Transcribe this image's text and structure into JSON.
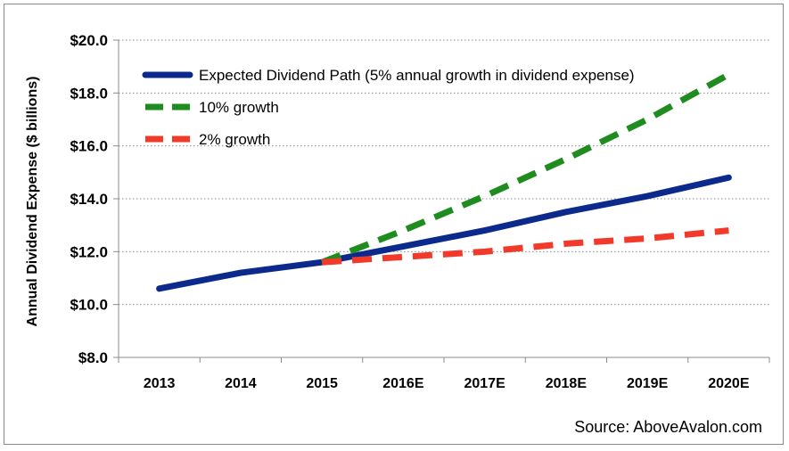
{
  "chart_data": {
    "type": "line",
    "title": "",
    "ylabel": "Annual Dividend Expense ($ billions)",
    "xlabel": "",
    "categories": [
      "2013",
      "2014",
      "2015",
      "2016E",
      "2017E",
      "2018E",
      "2019E",
      "2020E"
    ],
    "ylim": [
      8,
      20
    ],
    "y_ticks": [
      8,
      10,
      12,
      14,
      16,
      18,
      20
    ],
    "y_tick_labels": [
      "$8.0",
      "$10.0",
      "$12.0",
      "$14.0",
      "$16.0",
      "$18.0",
      "$20.0"
    ],
    "grid": "horizontal dotted",
    "legend_position": "top-left",
    "series": [
      {
        "name": "Expected Dividend Path (5% annual growth in dividend expense)",
        "color": "#0c2a8c",
        "style": "solid",
        "values": [
          10.6,
          11.2,
          11.6,
          12.2,
          12.8,
          13.5,
          14.1,
          14.8
        ]
      },
      {
        "name": "10% growth",
        "color": "#1f8c1f",
        "style": "dashed",
        "values": [
          null,
          null,
          11.6,
          12.8,
          14.1,
          15.5,
          17.0,
          18.7
        ]
      },
      {
        "name": "2% growth",
        "color": "#f23a2a",
        "style": "dashed",
        "values": [
          null,
          null,
          11.6,
          11.8,
          12.0,
          12.3,
          12.5,
          12.8
        ]
      }
    ],
    "annotation": "Source: AboveAvalon.com"
  }
}
